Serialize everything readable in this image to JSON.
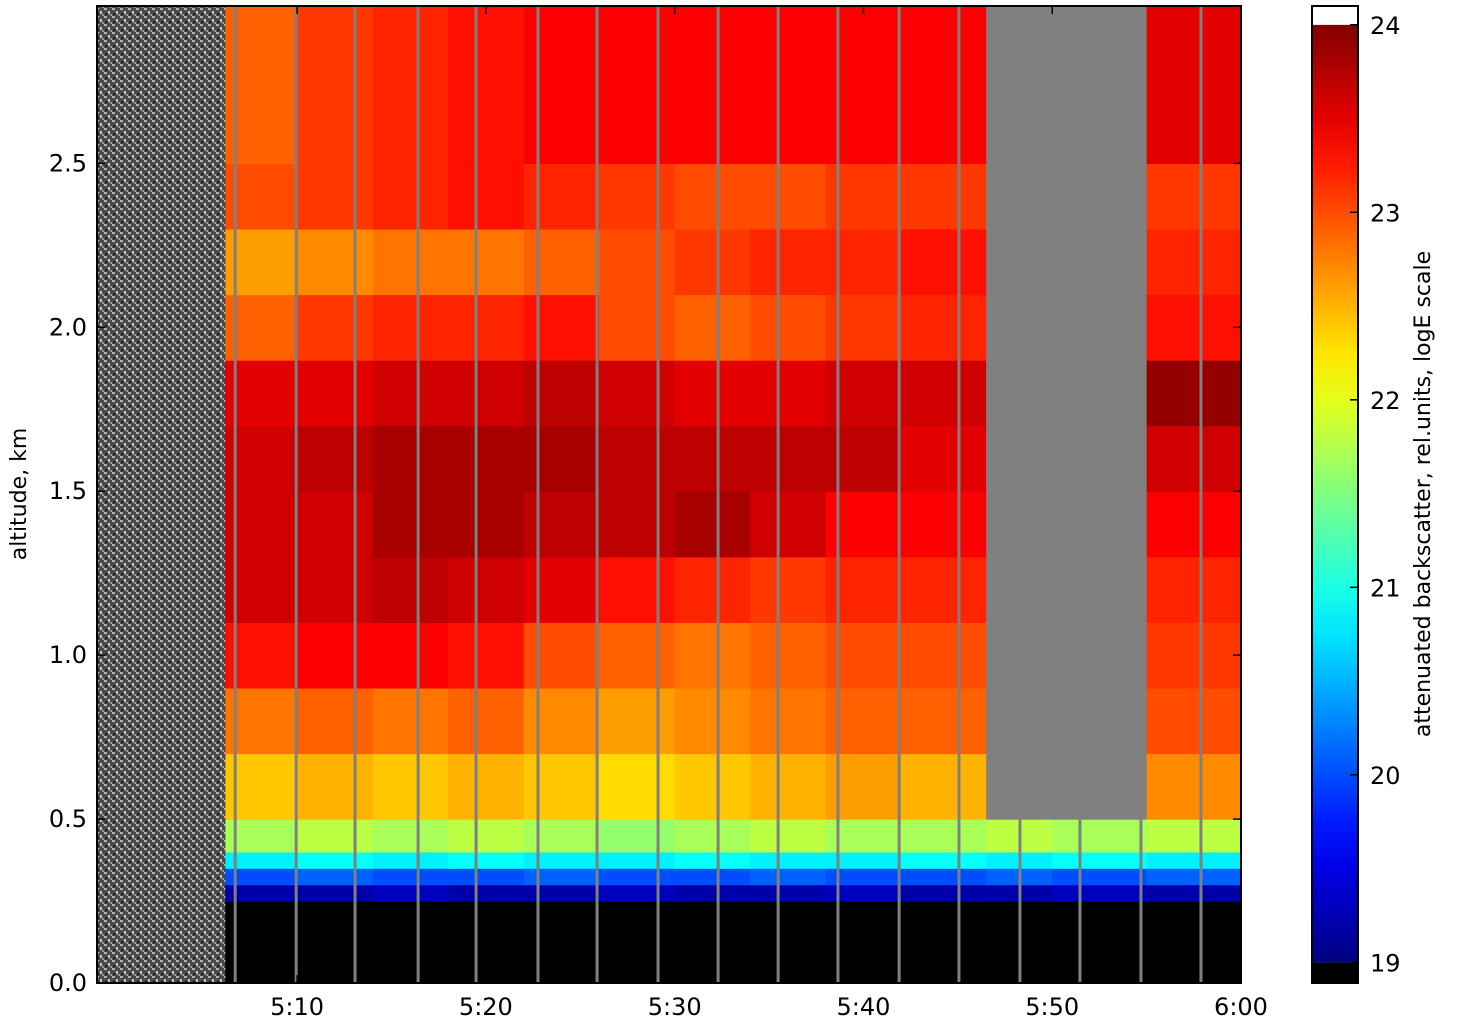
{
  "chart_data": {
    "type": "heatmap",
    "ylabel": "altitude, km",
    "colorbar_label": "attenuated backscatter, rel.units, logE scale",
    "colormap": "jet",
    "under_color": "#000000",
    "over_color": "#ffffff",
    "missing_color": "#808080",
    "xlim": [
      -0.6,
      60
    ],
    "xticks": [
      {
        "value": 10,
        "label": "5:10"
      },
      {
        "value": 20,
        "label": "5:20"
      },
      {
        "value": 30,
        "label": "5:30"
      },
      {
        "value": 40,
        "label": "5:40"
      },
      {
        "value": 50,
        "label": "5:50"
      },
      {
        "value": 60,
        "label": "6:00"
      }
    ],
    "ylim": [
      0,
      2.98
    ],
    "yticks": [
      {
        "value": 0,
        "label": "0.0"
      },
      0.5,
      {
        "value": 1,
        "label": "1.0"
      },
      1.5,
      {
        "value": 2,
        "label": "2.0"
      },
      2.5
    ],
    "clim": [
      18.89,
      24.1
    ],
    "cticks": [
      19,
      20,
      21,
      22,
      23,
      24
    ],
    "gap_lines": [
      6.72,
      9.95,
      13.07,
      16.41,
      19.48,
      22.76,
      25.89,
      29.12,
      32.3,
      35.48,
      38.65,
      41.89,
      45.06,
      48.29,
      51.47,
      54.7,
      57.88
    ],
    "xbins": [
      -0.6,
      6.2,
      10,
      14,
      18,
      22,
      26,
      30,
      34,
      38,
      42,
      46.5,
      50,
      55,
      60
    ],
    "ybins": [
      0,
      0.25,
      0.3,
      0.35,
      0.4,
      0.5,
      0.7,
      0.9,
      1.1,
      1.3,
      1.5,
      1.7,
      1.9,
      2.1,
      2.3,
      2.5,
      2.98
    ],
    "z": [
      [
        null,
        18.5,
        18.5,
        18.5,
        18.5,
        18.5,
        18.5,
        18.5,
        18.5,
        18.5,
        18.5,
        18.5,
        18.5,
        18.5
      ],
      [
        null,
        19.2,
        19.2,
        19.3,
        19.2,
        19.2,
        19.3,
        19.2,
        19.2,
        19.3,
        19.2,
        19.2,
        19.3,
        19.2
      ],
      [
        null,
        20.0,
        20.1,
        20.0,
        20.0,
        20.1,
        20.0,
        20.0,
        20.1,
        20.0,
        20.0,
        20.1,
        20.0,
        20.1
      ],
      [
        null,
        20.8,
        20.9,
        20.8,
        20.9,
        20.8,
        20.8,
        20.9,
        20.8,
        20.8,
        20.9,
        20.8,
        20.9,
        20.8
      ],
      [
        null,
        21.7,
        21.8,
        21.7,
        21.8,
        21.7,
        21.6,
        21.7,
        21.8,
        21.7,
        21.7,
        21.8,
        21.7,
        21.8
      ],
      [
        null,
        22.4,
        22.5,
        22.4,
        22.5,
        22.4,
        22.3,
        22.4,
        22.5,
        22.6,
        22.5,
        null,
        null,
        22.7
      ],
      [
        null,
        22.8,
        22.9,
        22.8,
        22.9,
        22.7,
        22.6,
        22.7,
        22.8,
        22.9,
        22.9,
        null,
        null,
        23.0
      ],
      [
        null,
        23.3,
        23.4,
        23.4,
        23.3,
        23.0,
        22.9,
        22.8,
        22.9,
        23.0,
        23.0,
        null,
        null,
        23.1
      ],
      [
        null,
        23.6,
        23.6,
        23.7,
        23.6,
        23.5,
        23.3,
        23.2,
        23.1,
        23.2,
        23.2,
        null,
        null,
        23.2
      ],
      [
        null,
        23.6,
        23.6,
        23.8,
        23.8,
        23.7,
        23.7,
        23.8,
        23.6,
        23.4,
        23.4,
        null,
        null,
        23.4
      ],
      [
        null,
        23.6,
        23.7,
        23.8,
        23.8,
        23.8,
        23.7,
        23.7,
        23.7,
        23.7,
        23.5,
        null,
        null,
        23.6
      ],
      [
        null,
        23.5,
        23.5,
        23.6,
        23.6,
        23.7,
        23.6,
        23.5,
        23.5,
        23.6,
        23.6,
        null,
        null,
        23.9
      ],
      [
        null,
        22.9,
        23.1,
        23.2,
        23.2,
        23.3,
        23.0,
        22.9,
        23.0,
        23.1,
        23.2,
        null,
        null,
        23.3
      ],
      [
        null,
        22.6,
        22.7,
        22.8,
        22.8,
        22.9,
        23.0,
        23.1,
        23.2,
        23.2,
        23.3,
        null,
        null,
        23.2
      ],
      [
        null,
        23.0,
        23.1,
        23.2,
        23.3,
        23.2,
        23.1,
        23.0,
        23.0,
        23.1,
        23.1,
        null,
        null,
        23.1
      ],
      [
        null,
        22.9,
        23.1,
        23.2,
        23.3,
        23.4,
        23.4,
        23.4,
        23.4,
        23.4,
        23.4,
        null,
        null,
        23.5
      ]
    ]
  }
}
